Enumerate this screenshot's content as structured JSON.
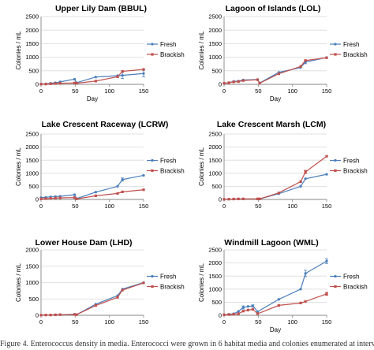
{
  "figure_caption": "Figure 4. Enterococcus density in media. Enterococci were grown in 6 habitat media and colonies enumerated at intervals",
  "colors": {
    "fresh": "#4a7ebb",
    "brackish": "#c0504d",
    "grid": "#d9d9d9",
    "axis": "#868686"
  },
  "chart_data": [
    {
      "type": "line",
      "title": "Upper Lily Dam (BBUL)",
      "xlabel": "Day",
      "ylabel": "Colonies / mL",
      "xlim": [
        0,
        150
      ],
      "ylim": [
        0,
        2500
      ],
      "xticks": [
        0,
        50,
        100,
        150
      ],
      "yticks": [
        0,
        500,
        1000,
        1500,
        2000,
        2500
      ],
      "grid": "horizontal",
      "legend": "right",
      "series": [
        {
          "name": "Fresh",
          "color": "#4a7ebb",
          "x": [
            0,
            7,
            14,
            21,
            28,
            49,
            52,
            80,
            112,
            119,
            150
          ],
          "y": [
            10,
            20,
            40,
            60,
            90,
            190,
            60,
            270,
            320,
            330,
            400
          ],
          "err": [
            0,
            0,
            0,
            0,
            0,
            0,
            0,
            0,
            0,
            110,
            120
          ]
        },
        {
          "name": "Brackish",
          "color": "#c0504d",
          "x": [
            0,
            7,
            14,
            21,
            28,
            49,
            52,
            80,
            112,
            119,
            150
          ],
          "y": [
            5,
            10,
            20,
            30,
            40,
            50,
            40,
            120,
            280,
            480,
            550
          ],
          "err": [
            0,
            0,
            0,
            0,
            0,
            0,
            0,
            0,
            0,
            0,
            0
          ]
        }
      ]
    },
    {
      "type": "line",
      "title": "Lagoon of Islands (LOL)",
      "xlabel": "Day",
      "ylabel": "Colonies / mL",
      "xlim": [
        0,
        150
      ],
      "ylim": [
        0,
        2500
      ],
      "xticks": [
        0,
        50,
        100,
        150
      ],
      "yticks": [
        0,
        500,
        1000,
        1500,
        2000,
        2500
      ],
      "grid": "horizontal",
      "legend": "right",
      "series": [
        {
          "name": "Fresh",
          "color": "#4a7ebb",
          "x": [
            0,
            7,
            14,
            21,
            28,
            49,
            52,
            80,
            112,
            119,
            150
          ],
          "y": [
            30,
            60,
            110,
            120,
            160,
            180,
            50,
            440,
            620,
            820,
            990
          ],
          "err": [
            0,
            0,
            0,
            0,
            0,
            0,
            0,
            0,
            0,
            60,
            0
          ]
        },
        {
          "name": "Brackish",
          "color": "#c0504d",
          "x": [
            0,
            7,
            14,
            21,
            28,
            49,
            52,
            80,
            112,
            119,
            150
          ],
          "y": [
            40,
            60,
            90,
            100,
            140,
            170,
            40,
            390,
            660,
            880,
            980
          ],
          "err": [
            0,
            0,
            0,
            0,
            0,
            0,
            0,
            0,
            0,
            0,
            0
          ]
        }
      ]
    },
    {
      "type": "line",
      "title": "Lake Crescent Raceway (LCRW)",
      "xlabel": "",
      "ylabel": "Colonies / mL",
      "xlim": [
        0,
        150
      ],
      "ylim": [
        0,
        2500
      ],
      "xticks": [
        0,
        50,
        100,
        150
      ],
      "yticks": [
        0,
        500,
        1000,
        1500,
        2000,
        2500
      ],
      "grid": "horizontal",
      "legend": "right",
      "series": [
        {
          "name": "Fresh",
          "color": "#4a7ebb",
          "x": [
            0,
            7,
            14,
            21,
            28,
            49,
            52,
            80,
            112,
            119,
            150
          ],
          "y": [
            70,
            80,
            100,
            110,
            120,
            180,
            30,
            280,
            500,
            760,
            920
          ],
          "err": [
            0,
            0,
            0,
            0,
            0,
            0,
            0,
            0,
            0,
            60,
            0
          ]
        },
        {
          "name": "Brackish",
          "color": "#c0504d",
          "x": [
            0,
            7,
            14,
            21,
            28,
            49,
            52,
            80,
            112,
            119,
            150
          ],
          "y": [
            20,
            30,
            40,
            50,
            60,
            70,
            20,
            140,
            230,
            290,
            370
          ],
          "err": [
            0,
            0,
            0,
            0,
            0,
            0,
            0,
            0,
            0,
            0,
            0
          ]
        }
      ]
    },
    {
      "type": "line",
      "title": "Lake Crescent Marsh (LCM)",
      "xlabel": "",
      "ylabel": "Colonies / mL",
      "xlim": [
        0,
        150
      ],
      "ylim": [
        0,
        2500
      ],
      "xticks": [
        0,
        50,
        100,
        150
      ],
      "yticks": [
        0,
        500,
        1000,
        1500,
        2000,
        2500
      ],
      "grid": "horizontal",
      "legend": "right",
      "series": [
        {
          "name": "Fresh",
          "color": "#4a7ebb",
          "x": [
            0,
            7,
            14,
            21,
            28,
            49,
            52,
            80,
            112,
            119,
            150
          ],
          "y": [
            5,
            10,
            15,
            20,
            20,
            20,
            20,
            220,
            500,
            790,
            960
          ],
          "err": [
            0,
            0,
            0,
            0,
            0,
            0,
            0,
            0,
            0,
            0,
            0
          ]
        },
        {
          "name": "Brackish",
          "color": "#c0504d",
          "x": [
            0,
            7,
            14,
            21,
            28,
            49,
            52,
            80,
            112,
            119,
            150
          ],
          "y": [
            5,
            10,
            15,
            20,
            20,
            20,
            20,
            250,
            680,
            1050,
            1650
          ],
          "err": [
            0,
            0,
            0,
            0,
            0,
            0,
            0,
            0,
            0,
            60,
            0
          ]
        }
      ]
    },
    {
      "type": "line",
      "title": "Lower House Dam (LHD)",
      "xlabel": "",
      "ylabel": "Colonies / mL",
      "xlim": [
        0,
        150
      ],
      "ylim": [
        0,
        2000
      ],
      "xticks": [
        0,
        50,
        100,
        150
      ],
      "yticks": [
        0,
        500,
        1000,
        1500,
        2000
      ],
      "grid": "horizontal",
      "legend": "right",
      "series": [
        {
          "name": "Fresh",
          "color": "#4a7ebb",
          "x": [
            0,
            7,
            14,
            21,
            28,
            49,
            52,
            80,
            112,
            119,
            150
          ],
          "y": [
            5,
            10,
            10,
            15,
            20,
            30,
            20,
            340,
            600,
            800,
            1000
          ],
          "err": [
            0,
            0,
            0,
            0,
            0,
            0,
            0,
            0,
            0,
            0,
            0
          ]
        },
        {
          "name": "Brackish",
          "color": "#c0504d",
          "x": [
            0,
            7,
            14,
            21,
            28,
            49,
            52,
            80,
            112,
            119,
            150
          ],
          "y": [
            5,
            10,
            10,
            15,
            20,
            25,
            20,
            300,
            550,
            770,
            990
          ],
          "err": [
            0,
            0,
            0,
            0,
            0,
            0,
            0,
            0,
            0,
            0,
            0
          ]
        }
      ]
    },
    {
      "type": "line",
      "title": "Windmill Lagoon (WML)",
      "xlabel": "Day",
      "ylabel": "Colonies / mL",
      "xlim": [
        0,
        150
      ],
      "ylim": [
        0,
        2500
      ],
      "xticks": [
        0,
        50,
        100,
        150
      ],
      "yticks": [
        0,
        500,
        1000,
        1500,
        2000,
        2500
      ],
      "grid": "horizontal",
      "legend": "right",
      "series": [
        {
          "name": "Fresh",
          "color": "#4a7ebb",
          "x": [
            0,
            7,
            14,
            21,
            28,
            35,
            42,
            49,
            80,
            112,
            119,
            150
          ],
          "y": [
            20,
            40,
            60,
            150,
            300,
            340,
            360,
            140,
            610,
            1000,
            1600,
            2070
          ],
          "err": [
            0,
            0,
            0,
            0,
            60,
            0,
            40,
            0,
            0,
            0,
            120,
            90
          ]
        },
        {
          "name": "Brackish",
          "color": "#c0504d",
          "x": [
            0,
            7,
            14,
            21,
            28,
            35,
            42,
            49,
            80,
            112,
            119,
            150
          ],
          "y": [
            20,
            30,
            40,
            60,
            160,
            200,
            230,
            60,
            380,
            470,
            530,
            820
          ],
          "err": [
            0,
            0,
            0,
            0,
            0,
            0,
            0,
            0,
            0,
            0,
            0,
            60
          ]
        }
      ]
    }
  ]
}
